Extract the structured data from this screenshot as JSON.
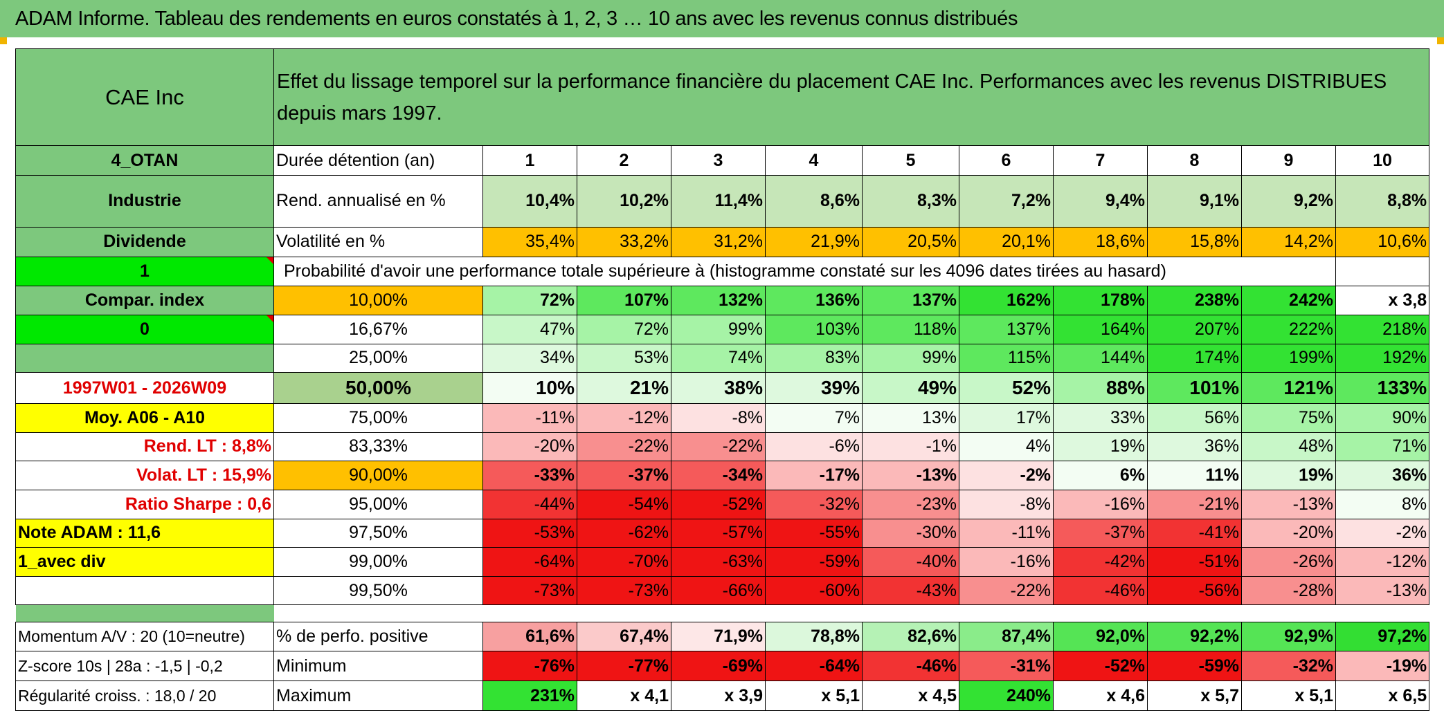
{
  "title": "ADAM Informe. Tableau des rendements en euros constatés à 1, 2, 3 … 10 ans avec les revenus connus distribués",
  "colors": {
    "header_green": "#7dc87d",
    "bright_green": "#00e800",
    "orange": "#ffc000",
    "yellow": "#ffff00",
    "label_red": "#e00000"
  },
  "sidebar": {
    "name": "CAE Inc",
    "code": "4_OTAN",
    "sector": "Industrie",
    "type": "Dividende",
    "val1": "1",
    "compar": "Compar. index",
    "val0": "0",
    "period": "1997W01 - 2026W09",
    "moy": "Moy. A06 - A10",
    "rend_lt": "Rend. LT :   8,8%",
    "volat_lt": "Volat. LT :   15,9%",
    "sharpe": "Ratio Sharpe :    0,6",
    "note": "Note ADAM : 11,6",
    "avec_div": "1_avec div",
    "momentum": "Momentum A/V : 20 (10=neutre)",
    "zscore": "Z-score 10s | 28a : -1,5 | -0,2",
    "regularite": "Régularité croiss. : 18,0 / 20"
  },
  "header_text": "Effet du lissage temporel sur la performance financière du placement CAE Inc. Performances avec les revenus DISTRIBUES depuis mars 1997.",
  "row_labels": {
    "duree": "Durée détention (an)",
    "rend": "Rend. annualisé en %",
    "vol": "Volatilité en %",
    "prob": "Probabilité d'avoir une performance totale supérieure à (histogramme constaté sur les 4096 dates tirées au hasard)",
    "positive": "% de perfo. positive",
    "minimum": "Minimum",
    "maximum": "Maximum"
  },
  "years": [
    "1",
    "2",
    "3",
    "4",
    "5",
    "6",
    "7",
    "8",
    "9",
    "10"
  ],
  "rend": [
    "10,4%",
    "10,2%",
    "11,4%",
    "8,6%",
    "8,3%",
    "7,2%",
    "9,4%",
    "9,1%",
    "9,2%",
    "8,8%"
  ],
  "vol": [
    "35,4%",
    "33,2%",
    "31,2%",
    "21,9%",
    "20,5%",
    "20,1%",
    "18,6%",
    "15,8%",
    "14,2%",
    "10,6%"
  ],
  "percentiles": [
    {
      "label": "10,00%",
      "values": [
        "72%",
        "107%",
        "132%",
        "136%",
        "137%",
        "162%",
        "178%",
        "238%",
        "242%",
        "x 3,8"
      ]
    },
    {
      "label": "16,67%",
      "values": [
        "47%",
        "72%",
        "99%",
        "103%",
        "118%",
        "137%",
        "164%",
        "207%",
        "222%",
        "218%"
      ]
    },
    {
      "label": "25,00%",
      "values": [
        "34%",
        "53%",
        "74%",
        "83%",
        "99%",
        "115%",
        "144%",
        "174%",
        "199%",
        "192%"
      ]
    },
    {
      "label": "50,00%",
      "values": [
        "10%",
        "21%",
        "38%",
        "39%",
        "49%",
        "52%",
        "88%",
        "101%",
        "121%",
        "133%"
      ]
    },
    {
      "label": "75,00%",
      "values": [
        "-11%",
        "-12%",
        "-8%",
        "7%",
        "13%",
        "17%",
        "33%",
        "56%",
        "75%",
        "90%"
      ]
    },
    {
      "label": "83,33%",
      "values": [
        "-20%",
        "-22%",
        "-22%",
        "-6%",
        "-1%",
        "4%",
        "19%",
        "36%",
        "48%",
        "71%"
      ]
    },
    {
      "label": "90,00%",
      "values": [
        "-33%",
        "-37%",
        "-34%",
        "-17%",
        "-13%",
        "-2%",
        "6%",
        "11%",
        "19%",
        "36%"
      ]
    },
    {
      "label": "95,00%",
      "values": [
        "-44%",
        "-54%",
        "-52%",
        "-32%",
        "-23%",
        "-8%",
        "-16%",
        "-21%",
        "-13%",
        "8%"
      ]
    },
    {
      "label": "97,50%",
      "values": [
        "-53%",
        "-62%",
        "-57%",
        "-55%",
        "-30%",
        "-11%",
        "-37%",
        "-41%",
        "-20%",
        "-2%"
      ]
    },
    {
      "label": "99,00%",
      "values": [
        "-64%",
        "-70%",
        "-63%",
        "-59%",
        "-40%",
        "-16%",
        "-42%",
        "-51%",
        "-26%",
        "-12%"
      ]
    },
    {
      "label": "99,50%",
      "values": [
        "-73%",
        "-73%",
        "-66%",
        "-60%",
        "-43%",
        "-22%",
        "-46%",
        "-56%",
        "-28%",
        "-13%"
      ]
    }
  ],
  "positive": [
    "61,6%",
    "67,4%",
    "71,9%",
    "78,8%",
    "82,6%",
    "87,4%",
    "92,0%",
    "92,2%",
    "92,9%",
    "97,2%"
  ],
  "minimum": [
    "-76%",
    "-77%",
    "-69%",
    "-64%",
    "-46%",
    "-31%",
    "-52%",
    "-59%",
    "-32%",
    "-19%"
  ],
  "maximum": [
    "231%",
    "x 4,1",
    "x 3,9",
    "x 5,1",
    "x 4,5",
    "240%",
    "x 4,6",
    "x 5,7",
    "x 5,1",
    "x 6,5"
  ]
}
